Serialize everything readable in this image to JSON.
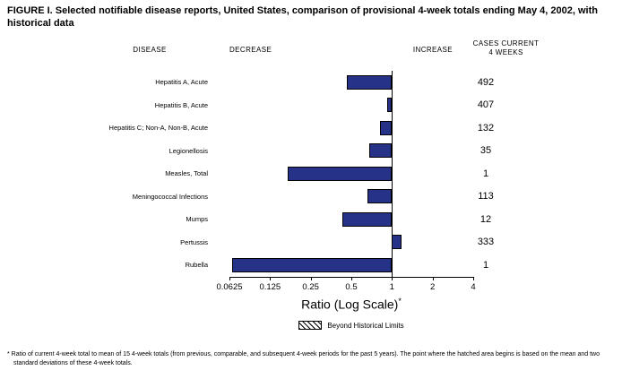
{
  "title": "FIGURE I. Selected notifiable disease reports, United States, comparison of provisional 4-week totals ending May 4, 2002, with historical data",
  "headers": {
    "disease": "DISEASE",
    "decrease": "DECREASE",
    "increase": "INCREASE",
    "cases_line1": "CASES CURRENT",
    "cases_line2": "4 WEEKS"
  },
  "chart_data": {
    "type": "bar",
    "orientation": "horizontal",
    "scale": "log2",
    "title": "FIGURE I. Selected notifiable disease reports, United States, comparison of provisional 4-week totals ending May 4, 2002, with historical data",
    "categories": [
      "Hepatitis A, Acute",
      "Hepatitis B, Acute",
      "Hepatitis C; Non-A, Non-B, Acute",
      "Legionellosis",
      "Measles, Total",
      "Meningococcal Infections",
      "Mumps",
      "Pertussis",
      "Rubella"
    ],
    "ratios": [
      0.46,
      0.92,
      0.82,
      0.68,
      0.17,
      0.66,
      0.43,
      1.18,
      0.065
    ],
    "cases": [
      492,
      407,
      132,
      35,
      1,
      113,
      12,
      333,
      1
    ],
    "baseline": 1,
    "xlim": [
      0.0625,
      4
    ],
    "x_ticks": [
      "0.0625",
      "0.125",
      "0.25",
      "0.5",
      "1",
      "2",
      "4"
    ],
    "xlabel": "Ratio (Log Scale)",
    "xlabel_note_marker": "*",
    "bar_color": "#263287",
    "grid": false,
    "legend_position": "bottom"
  },
  "legend": {
    "label": "Beyond Historical Limits"
  },
  "footnote": "* Ratio of current 4-week total to mean of 15 4-week totals (from previous, comparable, and subsequent 4-week periods for the past 5 years). The point where the hatched area begins is based on the mean and two standard deviations of these 4-week totals."
}
